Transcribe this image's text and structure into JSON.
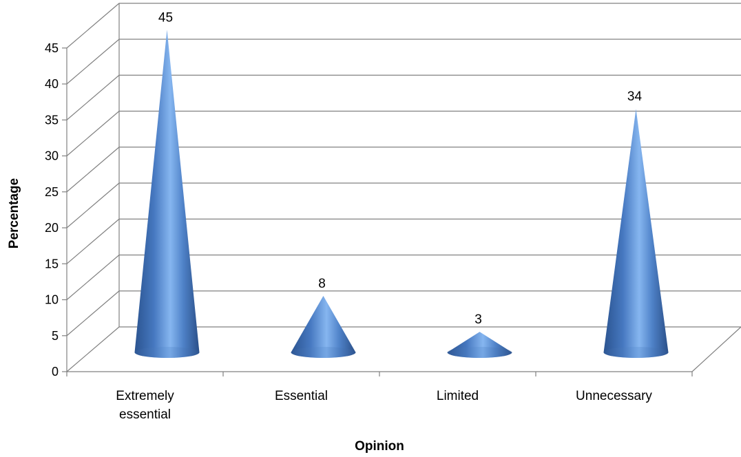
{
  "chart_data": {
    "type": "bar",
    "shape": "cone",
    "three_d": true,
    "categories": [
      "Extremely essential",
      "Essential",
      "Limited",
      "Unnecessary"
    ],
    "category_lines": [
      [
        "Extremely",
        "essential"
      ],
      [
        "Essential"
      ],
      [
        "Limited"
      ],
      [
        "Unnecessary"
      ]
    ],
    "values": [
      45,
      8,
      3,
      34
    ],
    "data_labels": [
      "45",
      "8",
      "3",
      "34"
    ],
    "xlabel": "Opinion",
    "ylabel": "Percentage",
    "ylim": [
      0,
      45
    ],
    "yticks": [
      0,
      5,
      10,
      15,
      20,
      25,
      30,
      35,
      40,
      45
    ],
    "grid": true,
    "legend": "none",
    "colors": {
      "cone": "#4f81bd",
      "grid": "#808080"
    }
  }
}
